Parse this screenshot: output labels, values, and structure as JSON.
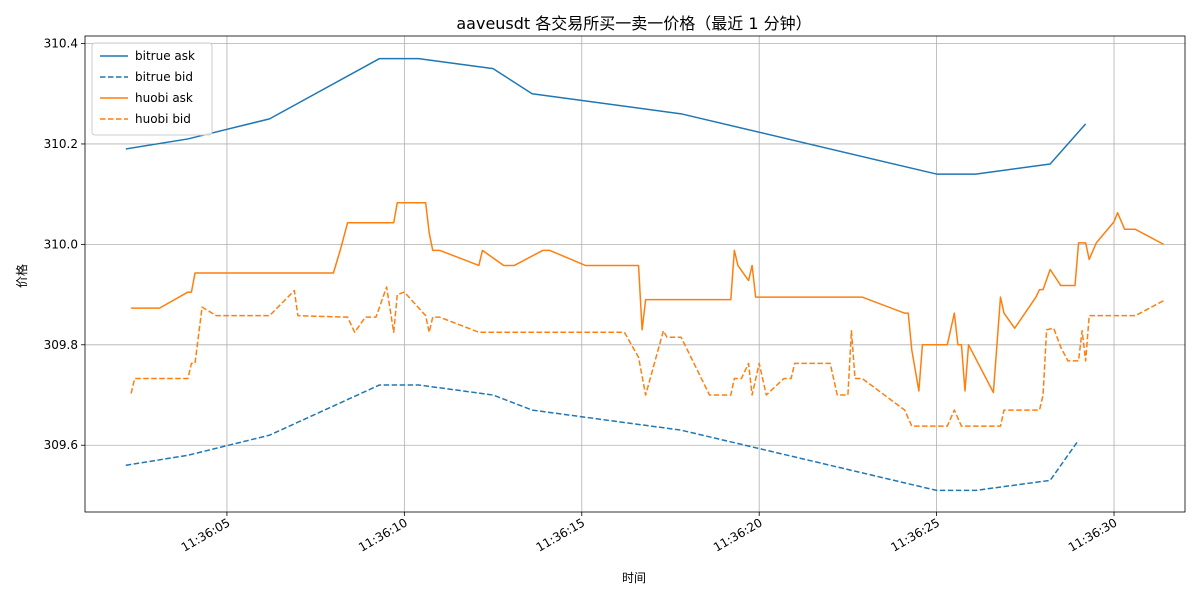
{
  "chart_data": {
    "type": "line",
    "title": "aaveusdt 各交易所买一卖一价格（最近 1 分钟）",
    "xlabel": "时间",
    "ylabel": "价格",
    "xlim": [
      "11:36:01.00",
      "11:36:32.00"
    ],
    "ylim": [
      309.467,
      310.415
    ],
    "x_ticks": [
      "11:36:05",
      "11:36:10",
      "11:36:15",
      "11:36:20",
      "11:36:25",
      "11:36:30"
    ],
    "y_ticks": [
      "309.6",
      "309.8",
      "310.0",
      "310.2",
      "310.4"
    ],
    "grid": true,
    "legend": "top-left",
    "colors": {
      "blue": "#1f77b4",
      "orange": "#ff7f0e"
    },
    "series": [
      {
        "name": "bitrue ask",
        "color": "#1f77b4",
        "dash": "solid",
        "points": [
          [
            "11:36:02.15",
            310.19
          ],
          [
            "11:36:03.90",
            310.21
          ],
          [
            "11:36:06.20",
            310.25
          ],
          [
            "11:36:09.30",
            310.37
          ],
          [
            "11:36:10.40",
            310.37
          ],
          [
            "11:36:12.50",
            310.35
          ],
          [
            "11:36:13.60",
            310.3
          ],
          [
            "11:36:17.80",
            310.26
          ],
          [
            "11:36:25.00",
            310.14
          ],
          [
            "11:36:26.10",
            310.14
          ],
          [
            "11:36:28.20",
            310.16
          ],
          [
            "11:36:29.20",
            310.24
          ]
        ]
      },
      {
        "name": "bitrue bid",
        "color": "#1f77b4",
        "dash": "dashed",
        "points": [
          [
            "11:36:02.15",
            309.56
          ],
          [
            "11:36:03.90",
            309.58
          ],
          [
            "11:36:06.20",
            309.62
          ],
          [
            "11:36:09.30",
            309.72
          ],
          [
            "11:36:10.40",
            309.72
          ],
          [
            "11:36:12.50",
            309.7
          ],
          [
            "11:36:13.60",
            309.67
          ],
          [
            "11:36:17.80",
            309.63
          ],
          [
            "11:36:25.00",
            309.51
          ],
          [
            "11:36:26.10",
            309.51
          ],
          [
            "11:36:28.20",
            309.53
          ],
          [
            "11:36:29.00",
            309.61
          ]
        ]
      },
      {
        "name": "huobi ask",
        "color": "#ff7f0e",
        "dash": "solid",
        "points": [
          [
            "11:36:02.30",
            309.873
          ],
          [
            "11:36:03.10",
            309.873
          ],
          [
            "11:36:03.90",
            309.905
          ],
          [
            "11:36:04.00",
            309.905
          ],
          [
            "11:36:04.10",
            309.943
          ],
          [
            "11:36:08.00",
            309.943
          ],
          [
            "11:36:08.20",
            309.99
          ],
          [
            "11:36:08.40",
            310.043
          ],
          [
            "11:36:09.70",
            310.043
          ],
          [
            "11:36:09.80",
            310.083
          ],
          [
            "11:36:10.60",
            310.083
          ],
          [
            "11:36:10.70",
            310.023
          ],
          [
            "11:36:10.80",
            309.988
          ],
          [
            "11:36:11.00",
            309.988
          ],
          [
            "11:36:12.10",
            309.958
          ],
          [
            "11:36:12.20",
            309.988
          ],
          [
            "11:36:12.80",
            309.958
          ],
          [
            "11:36:13.10",
            309.958
          ],
          [
            "11:36:13.90",
            309.988
          ],
          [
            "11:36:14.10",
            309.988
          ],
          [
            "11:36:15.10",
            309.958
          ],
          [
            "11:36:16.60",
            309.958
          ],
          [
            "11:36:16.70",
            309.83
          ],
          [
            "11:36:16.80",
            309.89
          ],
          [
            "11:36:19.20",
            309.89
          ],
          [
            "11:36:19.30",
            309.988
          ],
          [
            "11:36:19.40",
            309.958
          ],
          [
            "11:36:19.70",
            309.928
          ],
          [
            "11:36:19.80",
            309.958
          ],
          [
            "11:36:19.90",
            309.895
          ],
          [
            "11:36:22.90",
            309.895
          ],
          [
            "11:36:24.10",
            309.863
          ],
          [
            "11:36:24.20",
            309.863
          ],
          [
            "11:36:24.30",
            309.79
          ],
          [
            "11:36:24.50",
            309.708
          ],
          [
            "11:36:24.60",
            309.8
          ],
          [
            "11:36:25.30",
            309.8
          ],
          [
            "11:36:25.50",
            309.863
          ],
          [
            "11:36:25.60",
            309.8
          ],
          [
            "11:36:25.70",
            309.8
          ],
          [
            "11:36:25.80",
            309.708
          ],
          [
            "11:36:25.90",
            309.8
          ],
          [
            "11:36:26.60",
            309.705
          ],
          [
            "11:36:26.80",
            309.895
          ],
          [
            "11:36:26.90",
            309.863
          ],
          [
            "11:36:27.20",
            309.833
          ],
          [
            "11:36:27.80",
            309.895
          ],
          [
            "11:36:27.90",
            309.91
          ],
          [
            "11:36:28.00",
            309.91
          ],
          [
            "11:36:28.20",
            309.95
          ],
          [
            "11:36:28.50",
            309.918
          ],
          [
            "11:36:28.90",
            309.918
          ],
          [
            "11:36:29.00",
            310.003
          ],
          [
            "11:36:29.20",
            310.003
          ],
          [
            "11:36:29.30",
            309.97
          ],
          [
            "11:36:29.50",
            310.003
          ],
          [
            "11:36:30.00",
            310.045
          ],
          [
            "11:36:30.10",
            310.063
          ],
          [
            "11:36:30.30",
            310.03
          ],
          [
            "11:36:30.60",
            310.03
          ],
          [
            "11:36:31.40",
            310.0
          ]
        ]
      },
      {
        "name": "huobi bid",
        "color": "#ff7f0e",
        "dash": "dashed",
        "points": [
          [
            "11:36:02.30",
            309.703
          ],
          [
            "11:36:02.40",
            309.733
          ],
          [
            "11:36:03.90",
            309.733
          ],
          [
            "11:36:04.00",
            309.763
          ],
          [
            "11:36:04.10",
            309.763
          ],
          [
            "11:36:04.30",
            309.875
          ],
          [
            "11:36:04.70",
            309.858
          ],
          [
            "11:36:06.00",
            309.858
          ],
          [
            "11:36:06.20",
            309.858
          ],
          [
            "11:36:06.90",
            309.908
          ],
          [
            "11:36:07.00",
            309.858
          ],
          [
            "11:36:08.40",
            309.855
          ],
          [
            "11:36:08.60",
            309.825
          ],
          [
            "11:36:08.90",
            309.855
          ],
          [
            "11:36:09.20",
            309.855
          ],
          [
            "11:36:09.50",
            309.915
          ],
          [
            "11:36:09.70",
            309.825
          ],
          [
            "11:36:09.80",
            309.9
          ],
          [
            "11:36:10.00",
            309.905
          ],
          [
            "11:36:10.60",
            309.858
          ],
          [
            "11:36:10.70",
            309.825
          ],
          [
            "11:36:10.80",
            309.855
          ],
          [
            "11:36:11.00",
            309.855
          ],
          [
            "11:36:12.10",
            309.825
          ],
          [
            "11:36:16.20",
            309.825
          ],
          [
            "11:36:16.60",
            309.775
          ],
          [
            "11:36:16.80",
            309.7
          ],
          [
            "11:36:17.30",
            309.828
          ],
          [
            "11:36:17.40",
            309.815
          ],
          [
            "11:36:17.80",
            309.815
          ],
          [
            "11:36:18.60",
            309.7
          ],
          [
            "11:36:19.20",
            309.7
          ],
          [
            "11:36:19.30",
            309.733
          ],
          [
            "11:36:19.50",
            309.733
          ],
          [
            "11:36:19.70",
            309.763
          ],
          [
            "11:36:19.80",
            309.7
          ],
          [
            "11:36:20.00",
            309.763
          ],
          [
            "11:36:20.20",
            309.7
          ],
          [
            "11:36:20.70",
            309.733
          ],
          [
            "11:36:20.90",
            309.733
          ],
          [
            "11:36:21.00",
            309.763
          ],
          [
            "11:36:22.00",
            309.763
          ],
          [
            "11:36:22.20",
            309.7
          ],
          [
            "11:36:22.50",
            309.7
          ],
          [
            "11:36:22.60",
            309.828
          ],
          [
            "11:36:22.70",
            309.733
          ],
          [
            "11:36:22.90",
            309.733
          ],
          [
            "11:36:24.10",
            309.67
          ],
          [
            "11:36:24.30",
            309.638
          ],
          [
            "11:36:25.30",
            309.638
          ],
          [
            "11:36:25.50",
            309.67
          ],
          [
            "11:36:25.70",
            309.638
          ],
          [
            "11:36:26.80",
            309.638
          ],
          [
            "11:36:26.90",
            309.67
          ],
          [
            "11:36:27.90",
            309.67
          ],
          [
            "11:36:28.00",
            309.7
          ],
          [
            "11:36:28.10",
            309.83
          ],
          [
            "11:36:28.30",
            309.833
          ],
          [
            "11:36:28.50",
            309.795
          ],
          [
            "11:36:28.70",
            309.768
          ],
          [
            "11:36:29.00",
            309.768
          ],
          [
            "11:36:29.10",
            309.828
          ],
          [
            "11:36:29.20",
            309.768
          ],
          [
            "11:36:29.30",
            309.858
          ],
          [
            "11:36:30.60",
            309.858
          ],
          [
            "11:36:31.40",
            309.888
          ]
        ]
      }
    ]
  }
}
